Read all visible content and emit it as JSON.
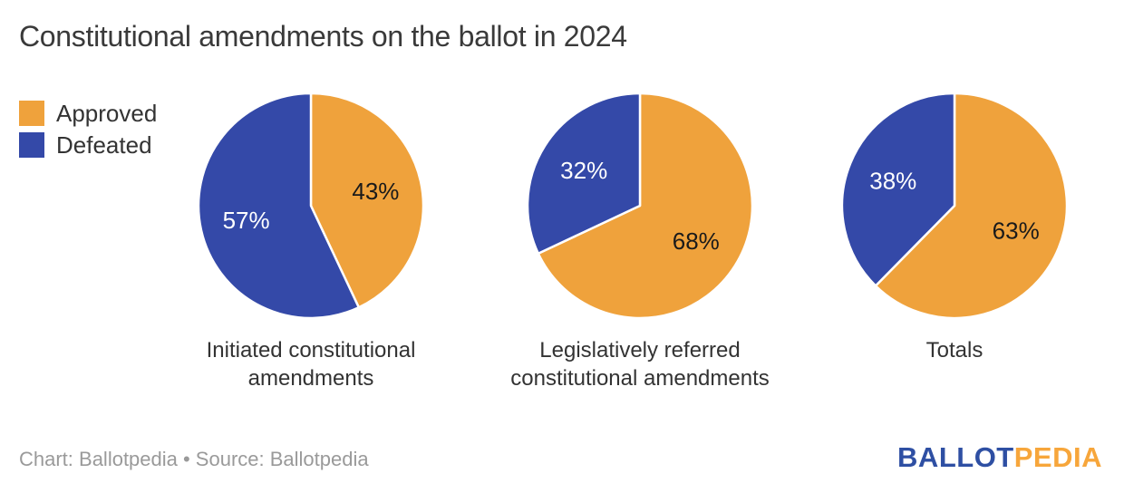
{
  "title": "Constitutional amendments on the ballot in 2024",
  "legend": [
    {
      "label": "Approved",
      "color": "#EFA23C"
    },
    {
      "label": "Defeated",
      "color": "#3449A8"
    }
  ],
  "colors": {
    "approved": "#EFA23C",
    "defeated": "#3449A8",
    "title_text": "#3a3a3a",
    "caption_text": "#333333",
    "attribution_text": "#9a9a9a",
    "slice_separator": "#ffffff"
  },
  "chart_data": [
    {
      "type": "pie",
      "title": "Initiated constitutional amendments",
      "start_angle": "12 o'clock",
      "direction": "clockwise",
      "slices": [
        {
          "label": "Approved",
          "value": 43,
          "display": "43%",
          "text_color": "#1a1a1a"
        },
        {
          "label": "Defeated",
          "value": 57,
          "display": "57%",
          "text_color": "#ffffff"
        }
      ]
    },
    {
      "type": "pie",
      "title": "Legislatively referred constitutional amendments",
      "start_angle": "12 o'clock",
      "direction": "clockwise",
      "slices": [
        {
          "label": "Approved",
          "value": 68,
          "display": "68%",
          "text_color": "#1a1a1a"
        },
        {
          "label": "Defeated",
          "value": 32,
          "display": "32%",
          "text_color": "#ffffff"
        }
      ]
    },
    {
      "type": "pie",
      "title": "Totals",
      "start_angle": "12 o'clock",
      "direction": "clockwise",
      "slices": [
        {
          "label": "Approved",
          "value": 63,
          "display": "63%",
          "text_color": "#1a1a1a"
        },
        {
          "label": "Defeated",
          "value": 38,
          "display": "38%",
          "text_color": "#ffffff"
        }
      ]
    }
  ],
  "footer": {
    "attribution": "Chart: Ballotpedia • Source: Ballotpedia",
    "logo": {
      "part1": "BALLOT",
      "part1_color": "#2E4FA3",
      "part2": "PEDIA",
      "part2_color": "#F7A63B"
    }
  }
}
